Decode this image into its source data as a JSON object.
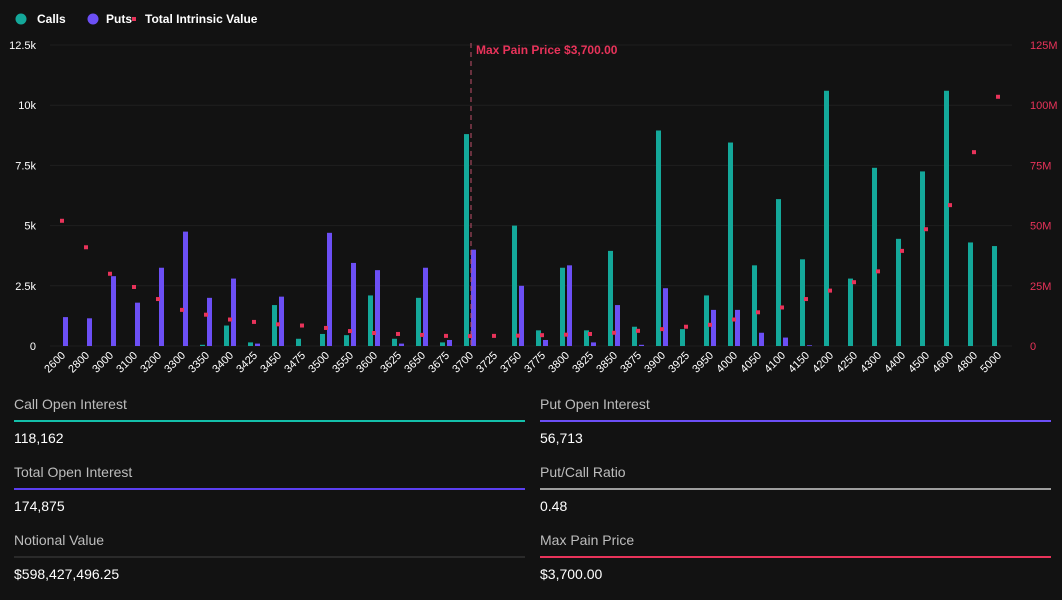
{
  "chart_data": {
    "type": "bar",
    "legend": {
      "placement": "top-left",
      "items": [
        "Calls",
        "Puts",
        "Total Intrinsic Value"
      ]
    },
    "categories": [
      "2600",
      "2800",
      "3000",
      "3100",
      "3200",
      "3300",
      "3350",
      "3400",
      "3425",
      "3450",
      "3475",
      "3500",
      "3550",
      "3600",
      "3625",
      "3650",
      "3675",
      "3700",
      "3725",
      "3750",
      "3775",
      "3800",
      "3825",
      "3850",
      "3875",
      "3900",
      "3925",
      "3950",
      "4000",
      "4050",
      "4100",
      "4150",
      "4200",
      "4250",
      "4300",
      "4400",
      "4500",
      "4600",
      "4800",
      "5000"
    ],
    "series": [
      {
        "name": "Calls",
        "type": "bar",
        "axis": "left",
        "color": "#14a89a",
        "values": [
          0,
          0,
          0,
          0,
          0,
          0,
          50,
          850,
          150,
          1700,
          300,
          500,
          450,
          2100,
          300,
          2000,
          150,
          8800,
          0,
          5000,
          650,
          3250,
          650,
          3950,
          800,
          8950,
          700,
          2100,
          8450,
          3350,
          6100,
          3600,
          10600,
          2800,
          7400,
          4450,
          7250,
          10600,
          4300,
          4150
        ]
      },
      {
        "name": "Puts",
        "type": "bar",
        "axis": "left",
        "color": "#6c4ff5",
        "values": [
          1200,
          1150,
          2900,
          1800,
          3250,
          4750,
          2000,
          2800,
          100,
          2050,
          0,
          4700,
          3450,
          3150,
          100,
          3250,
          250,
          4000,
          0,
          2500,
          250,
          3350,
          150,
          1700,
          50,
          2400,
          0,
          1500,
          1500,
          550,
          350,
          30,
          0,
          0,
          0,
          0,
          0,
          0,
          0,
          0
        ]
      },
      {
        "name": "Total Intrinsic Value",
        "type": "scatter",
        "axis": "right",
        "color": "#e8335a",
        "values": [
          52,
          41,
          30,
          24.5,
          19.5,
          15,
          13,
          11,
          10,
          9,
          8.5,
          7.5,
          6.2,
          5.4,
          5,
          4.6,
          4.2,
          4.1,
          4.2,
          4.3,
          4.5,
          4.7,
          5,
          5.5,
          6.3,
          7,
          8,
          8.8,
          11,
          14,
          16,
          19.5,
          23,
          26.5,
          31,
          39.5,
          48.5,
          58.5,
          80.5,
          103.5
        ]
      }
    ],
    "y_left": {
      "min": 0,
      "max": 12500,
      "ticks": [
        "0",
        "2.5k",
        "5k",
        "7.5k",
        "10k",
        "12.5k"
      ]
    },
    "y_right": {
      "min": 0,
      "max": 125,
      "unit": "M",
      "ticks": [
        "0",
        "25M",
        "50M",
        "75M",
        "100M",
        "125M"
      ]
    },
    "annotation": {
      "category": "3700",
      "label": "Max Pain Price $3,700.00",
      "color": "#e8335a"
    },
    "grid": true
  },
  "stats": [
    {
      "label": "Call Open Interest",
      "value": "118,162",
      "color": "#14c0aa"
    },
    {
      "label": "Put Open Interest",
      "value": "56,713",
      "color": "#6c4ff5"
    },
    {
      "label": "Total Open Interest",
      "value": "174,875",
      "color": "#5b3ff0"
    },
    {
      "label": "Put/Call Ratio",
      "value": "0.48",
      "color": "#9e9e9e"
    },
    {
      "label": "Notional Value",
      "value": "$598,427,496.25",
      "color": "#2a2a2a"
    },
    {
      "label": "Max Pain Price",
      "value": "$3,700.00",
      "color": "#e8335a"
    }
  ]
}
